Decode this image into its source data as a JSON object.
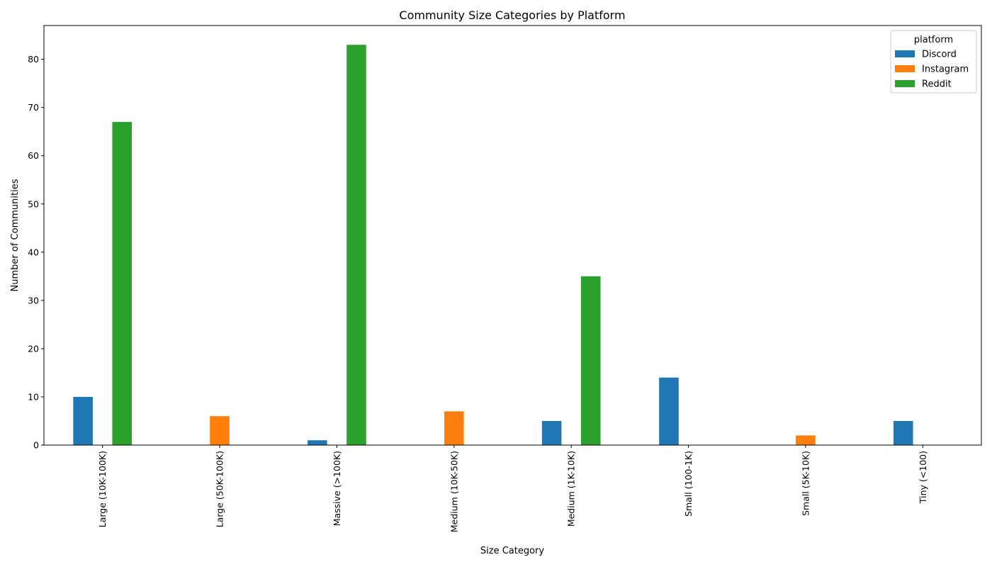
{
  "chart_data": {
    "type": "bar",
    "title": "Community Size Categories by Platform",
    "xlabel": "Size Category",
    "ylabel": "Number of Communities",
    "ylim": [
      0,
      87
    ],
    "yticks": [
      0,
      10,
      20,
      30,
      40,
      50,
      60,
      70,
      80
    ],
    "grid": false,
    "legend": {
      "title": "platform",
      "placement": "top-right"
    },
    "categories": [
      "Large (10K-100K)",
      "Large (50K-100K)",
      "Massive (>100K)",
      "Medium (10K-50K)",
      "Medium (1K-10K)",
      "Small (100-1K)",
      "Small (5K-10K)",
      "Tiny (<100)"
    ],
    "series": [
      {
        "name": "Discord",
        "color": "#1f77b4",
        "values": [
          10,
          0,
          1,
          0,
          5,
          14,
          0,
          5
        ]
      },
      {
        "name": "Instagram",
        "color": "#ff7f0e",
        "values": [
          0,
          6,
          0,
          7,
          0,
          0,
          2,
          0
        ]
      },
      {
        "name": "Reddit",
        "color": "#2ca02c",
        "values": [
          67,
          0,
          83,
          0,
          35,
          0,
          0,
          0
        ]
      }
    ]
  }
}
